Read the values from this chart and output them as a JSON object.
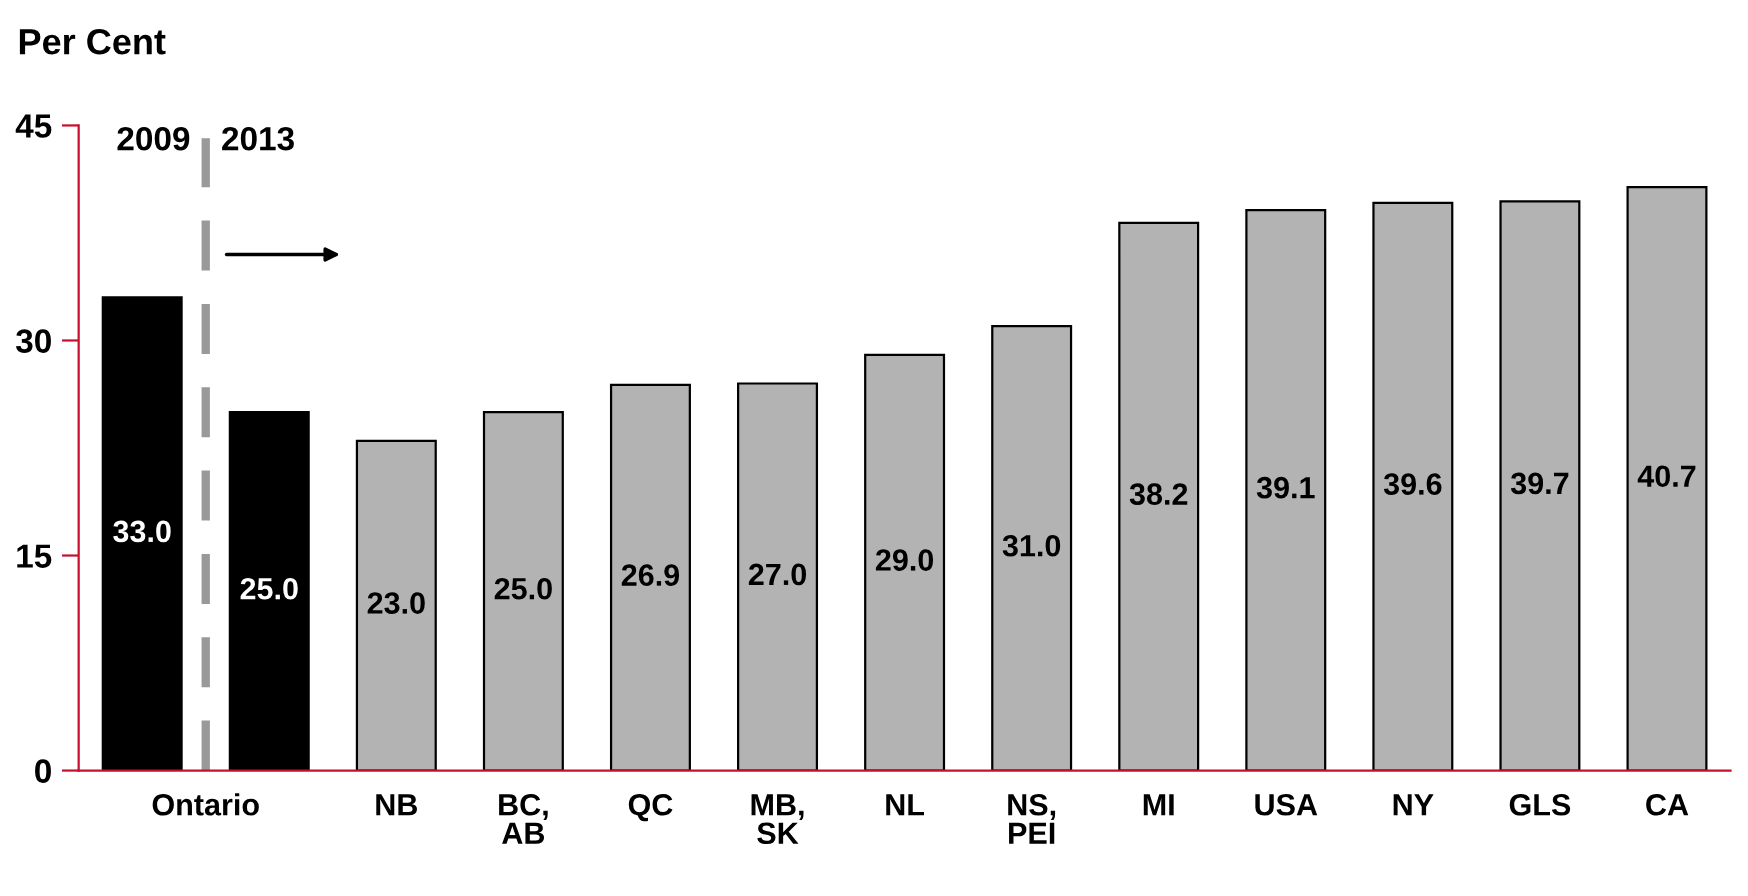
{
  "chart_data": {
    "type": "bar",
    "ylabel": "Per Cent",
    "categories": [
      "Ontario",
      null,
      "NB",
      "BC,\nAB",
      "QC",
      "MB,\nSK",
      "NL",
      "NS,\nPEI",
      "MI",
      "USA",
      "NY",
      "GLS",
      "CA"
    ],
    "values": [
      33.0,
      25.0,
      23.0,
      25.0,
      26.9,
      27.0,
      29.0,
      31.0,
      38.2,
      39.1,
      39.6,
      39.7,
      40.7
    ],
    "colors": [
      "#000000",
      "#000000",
      "#b3b3b3",
      "#b3b3b3",
      "#b3b3b3",
      "#b3b3b3",
      "#b3b3b3",
      "#b3b3b3",
      "#b3b3b3",
      "#b3b3b3",
      "#b3b3b3",
      "#b3b3b3",
      "#b3b3b3"
    ],
    "value_labels": [
      "33.0",
      "25.0",
      "23.0",
      "25.0",
      "26.9",
      "27.0",
      "29.0",
      "31.0",
      "38.2",
      "39.1",
      "39.6",
      "39.7",
      "40.7"
    ],
    "ylim": [
      0,
      45
    ],
    "yticks": [
      0,
      15,
      30,
      45
    ],
    "annotations": [
      "2009",
      "2013"
    ]
  }
}
